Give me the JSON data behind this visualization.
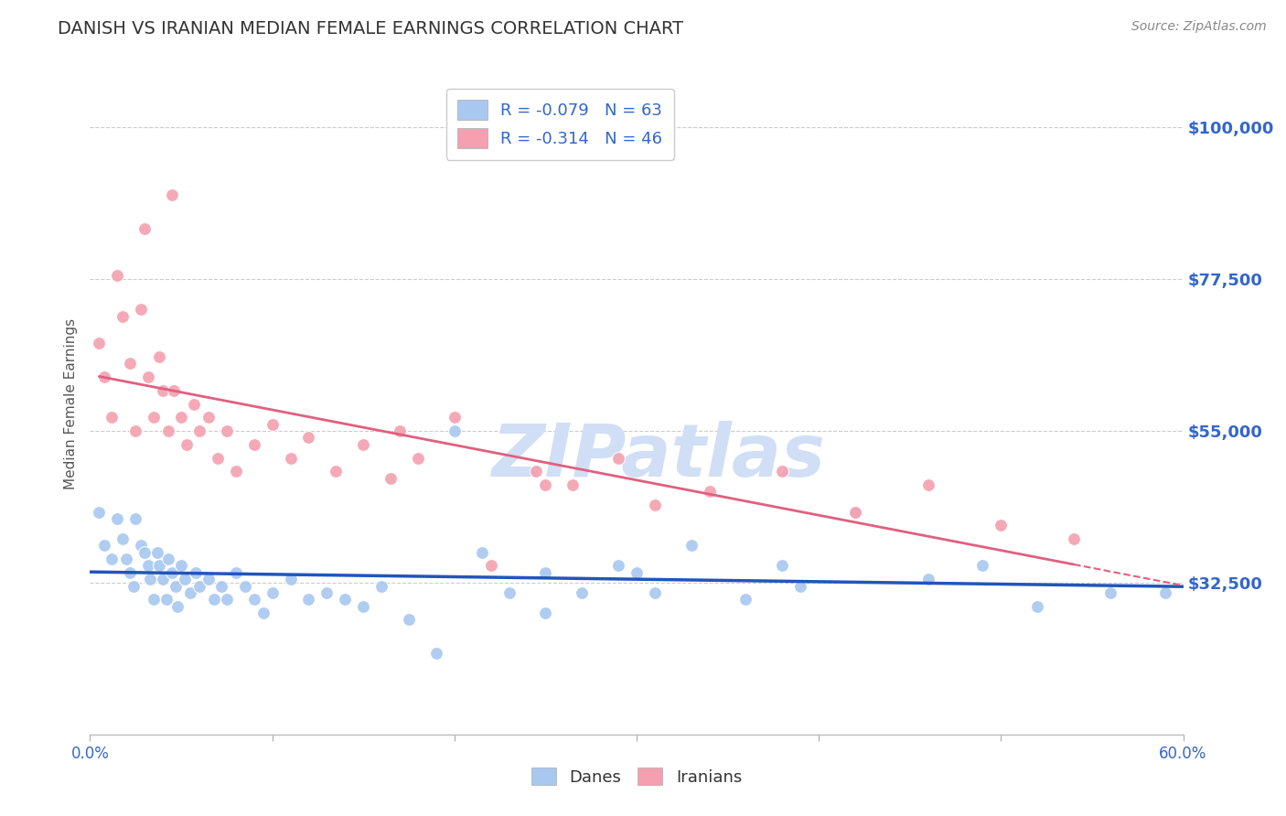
{
  "title": "DANISH VS IRANIAN MEDIAN FEMALE EARNINGS CORRELATION CHART",
  "source": "Source: ZipAtlas.com",
  "ylabel": "Median Female Earnings",
  "x_min": 0.0,
  "x_max": 0.6,
  "y_min": 10000,
  "y_max": 108000,
  "yticks": [
    32500,
    55000,
    77500,
    100000
  ],
  "ytick_labels": [
    "$32,500",
    "$55,000",
    "$77,500",
    "$100,000"
  ],
  "xticks": [
    0.0,
    0.1,
    0.2,
    0.3,
    0.4,
    0.5,
    0.6
  ],
  "xtick_labels": [
    "0.0%",
    "",
    "",
    "",
    "",
    "",
    "60.0%"
  ],
  "danes_color": "#A8C8F0",
  "iranians_color": "#F4A0B0",
  "trend_dane_color": "#2255BB",
  "trend_iranian_color": "#E06080",
  "watermark": "ZIPatlas",
  "watermark_color": "#D0DFF5",
  "danes_x": [
    0.005,
    0.008,
    0.012,
    0.015,
    0.018,
    0.02,
    0.022,
    0.024,
    0.025,
    0.028,
    0.03,
    0.032,
    0.033,
    0.035,
    0.037,
    0.038,
    0.04,
    0.042,
    0.043,
    0.045,
    0.047,
    0.048,
    0.05,
    0.052,
    0.055,
    0.058,
    0.06,
    0.065,
    0.068,
    0.072,
    0.075,
    0.08,
    0.085,
    0.09,
    0.095,
    0.1,
    0.11,
    0.12,
    0.13,
    0.14,
    0.15,
    0.16,
    0.175,
    0.19,
    0.2,
    0.215,
    0.23,
    0.25,
    0.27,
    0.29,
    0.31,
    0.33,
    0.36,
    0.39,
    0.42,
    0.46,
    0.49,
    0.52,
    0.56,
    0.3,
    0.25,
    0.38,
    0.59
  ],
  "danes_y": [
    43000,
    38000,
    36000,
    42000,
    39000,
    36000,
    34000,
    32000,
    42000,
    38000,
    37000,
    35000,
    33000,
    30000,
    37000,
    35000,
    33000,
    30000,
    36000,
    34000,
    32000,
    29000,
    35000,
    33000,
    31000,
    34000,
    32000,
    33000,
    30000,
    32000,
    30000,
    34000,
    32000,
    30000,
    28000,
    31000,
    33000,
    30000,
    31000,
    30000,
    29000,
    32000,
    27000,
    22000,
    55000,
    37000,
    31000,
    34000,
    31000,
    35000,
    31000,
    38000,
    30000,
    32000,
    43000,
    33000,
    35000,
    29000,
    31000,
    34000,
    28000,
    35000,
    31000
  ],
  "iranians_x": [
    0.005,
    0.008,
    0.012,
    0.015,
    0.018,
    0.022,
    0.025,
    0.028,
    0.032,
    0.035,
    0.038,
    0.04,
    0.043,
    0.046,
    0.05,
    0.053,
    0.057,
    0.06,
    0.065,
    0.07,
    0.075,
    0.08,
    0.09,
    0.1,
    0.11,
    0.12,
    0.135,
    0.15,
    0.165,
    0.18,
    0.2,
    0.22,
    0.245,
    0.265,
    0.29,
    0.31,
    0.34,
    0.38,
    0.42,
    0.46,
    0.5,
    0.54,
    0.17,
    0.25,
    0.03,
    0.045
  ],
  "iranians_y": [
    68000,
    63000,
    57000,
    78000,
    72000,
    65000,
    55000,
    73000,
    63000,
    57000,
    66000,
    61000,
    55000,
    61000,
    57000,
    53000,
    59000,
    55000,
    57000,
    51000,
    55000,
    49000,
    53000,
    56000,
    51000,
    54000,
    49000,
    53000,
    48000,
    51000,
    57000,
    35000,
    49000,
    47000,
    51000,
    44000,
    46000,
    49000,
    43000,
    47000,
    41000,
    39000,
    55000,
    47000,
    85000,
    90000
  ]
}
